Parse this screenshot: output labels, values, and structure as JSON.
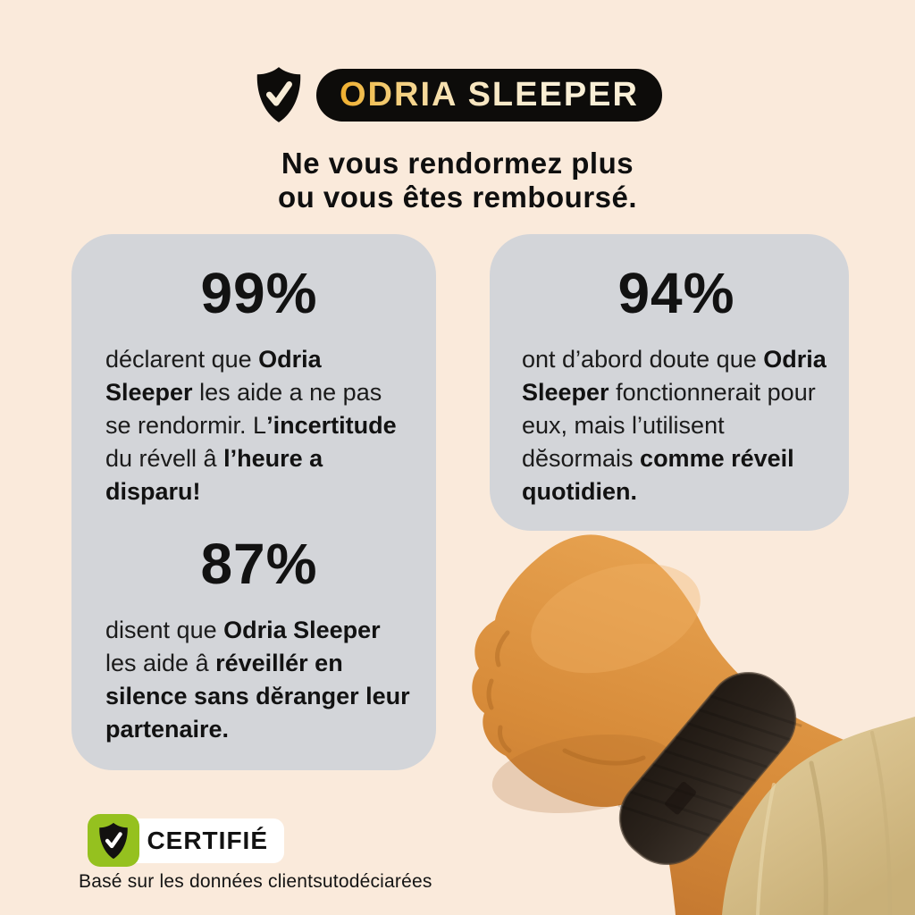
{
  "header": {
    "brand": "ODRIA SLEEPER",
    "brand_shield_icon": "shield-check-icon",
    "headline_line1": "Ne vous rendormez plus",
    "headline_line2": "ou vous êtes remboursé."
  },
  "cards": {
    "left": {
      "stats": [
        {
          "value": "99%",
          "runs": [
            {
              "t": "déclarent que ",
              "b": false
            },
            {
              "t": "Odria Sleeper",
              "b": true
            },
            {
              "t": " les aide a ne pas se rendormir. L",
              "b": false
            },
            {
              "t": "’incertitude",
              "b": true
            },
            {
              "t": " du révell â ",
              "b": false
            },
            {
              "t": "l’heure a disparu!",
              "b": true
            }
          ]
        },
        {
          "value": "87%",
          "runs": [
            {
              "t": "disent que ",
              "b": false
            },
            {
              "t": "Odria Sleeper",
              "b": true
            },
            {
              "t": " les aide â ",
              "b": false
            },
            {
              "t": "réveillér en silence sans dĕranger leur partenaire.",
              "b": true
            }
          ]
        }
      ]
    },
    "right": {
      "stats": [
        {
          "value": "94%",
          "runs": [
            {
              "t": "ont d’abord doute que ",
              "b": false
            },
            {
              "t": "Odria Sleeper",
              "b": true
            },
            {
              "t": " fonctionnerait pour eux, mais l’utilisent dĕsormais ",
              "b": false
            },
            {
              "t": "comme réveil quotidien.",
              "b": true
            }
          ]
        }
      ]
    }
  },
  "footer": {
    "certified_label": "CERTIFIÉ",
    "certified_shield_icon": "shield-check-icon",
    "disclaimer": "Basé sur les données clientsutodéciarées"
  },
  "illustration": {
    "name": "wrist-with-sleep-band",
    "description": "clenched fist wearing black sleep-tracker wristband with tan sleeve"
  },
  "colors": {
    "background": "#faeadb",
    "card_gray": "#d3d5d9",
    "pill_black": "#0d0c0a",
    "brand_gold": "#f1b43c",
    "brand_cream": "#f9efd6",
    "certified_green": "#95c11f",
    "band_dark": "#2b231c",
    "skin": "#d98f3e",
    "sleeve_tan": "#d8c28f"
  }
}
